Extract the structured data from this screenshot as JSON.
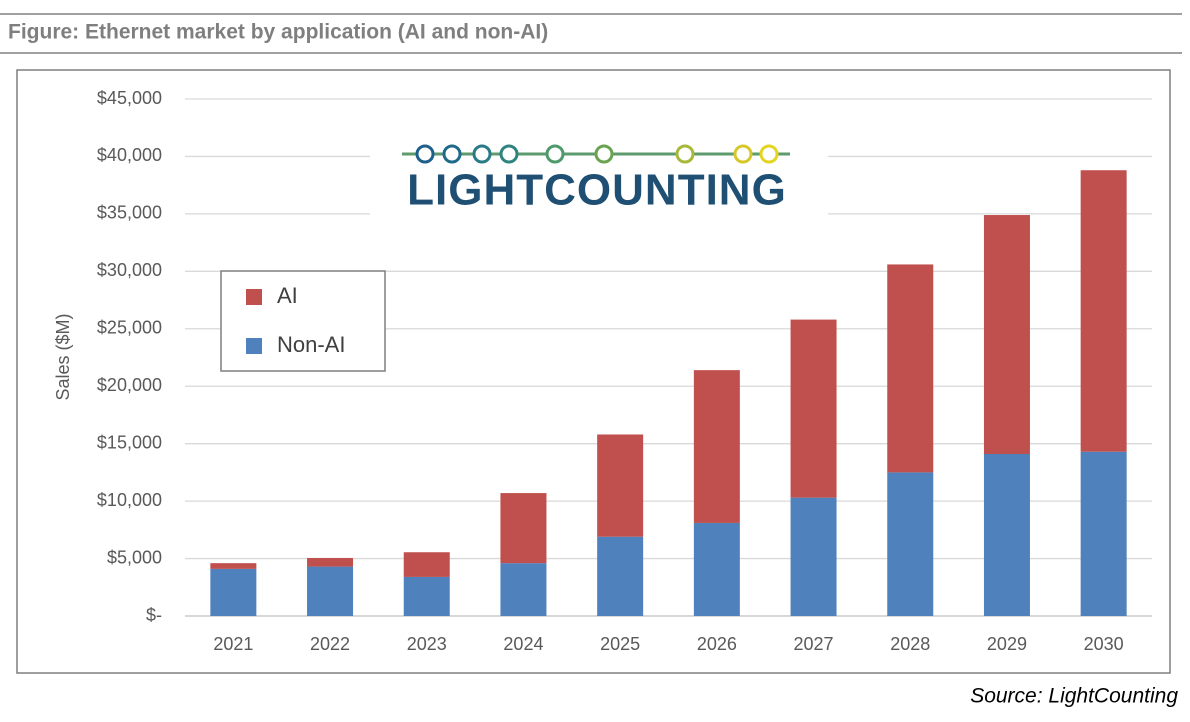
{
  "chart_data": {
    "type": "stacked_bar",
    "figure_title": "Figure: Ethernet market by application (AI and non-AI)",
    "logo": "LIGHTCOUNTING",
    "source": "Source: LightCounting",
    "y_label": "Sales ($M)",
    "categories": [
      "2021",
      "2022",
      "2023",
      "2024",
      "2025",
      "2026",
      "2027",
      "2028",
      "2029",
      "2030"
    ],
    "series": [
      {
        "name": "Non-AI",
        "color": "#4f81bd",
        "values": [
          4100,
          4300,
          3400,
          4600,
          6900,
          8100,
          10300,
          12500,
          14100,
          14300
        ]
      },
      {
        "name": "AI",
        "color": "#c0504d",
        "values": [
          500,
          750,
          2150,
          6100,
          8900,
          13300,
          15500,
          18100,
          20800,
          24500
        ]
      }
    ],
    "ylim": [
      0,
      45000
    ],
    "yticks": [
      {
        "value": 0,
        "label": "$-"
      },
      {
        "value": 5000,
        "label": "$5,000"
      },
      {
        "value": 10000,
        "label": "$10,000"
      },
      {
        "value": 15000,
        "label": "$15,000"
      },
      {
        "value": 20000,
        "label": "$20,000"
      },
      {
        "value": 25000,
        "label": "$25,000"
      },
      {
        "value": 30000,
        "label": "$30,000"
      },
      {
        "value": 35000,
        "label": "$35,000"
      },
      {
        "value": 40000,
        "label": "$40,000"
      },
      {
        "value": 45000,
        "label": "$45,000"
      }
    ],
    "grid": true,
    "legend_position": "left"
  }
}
